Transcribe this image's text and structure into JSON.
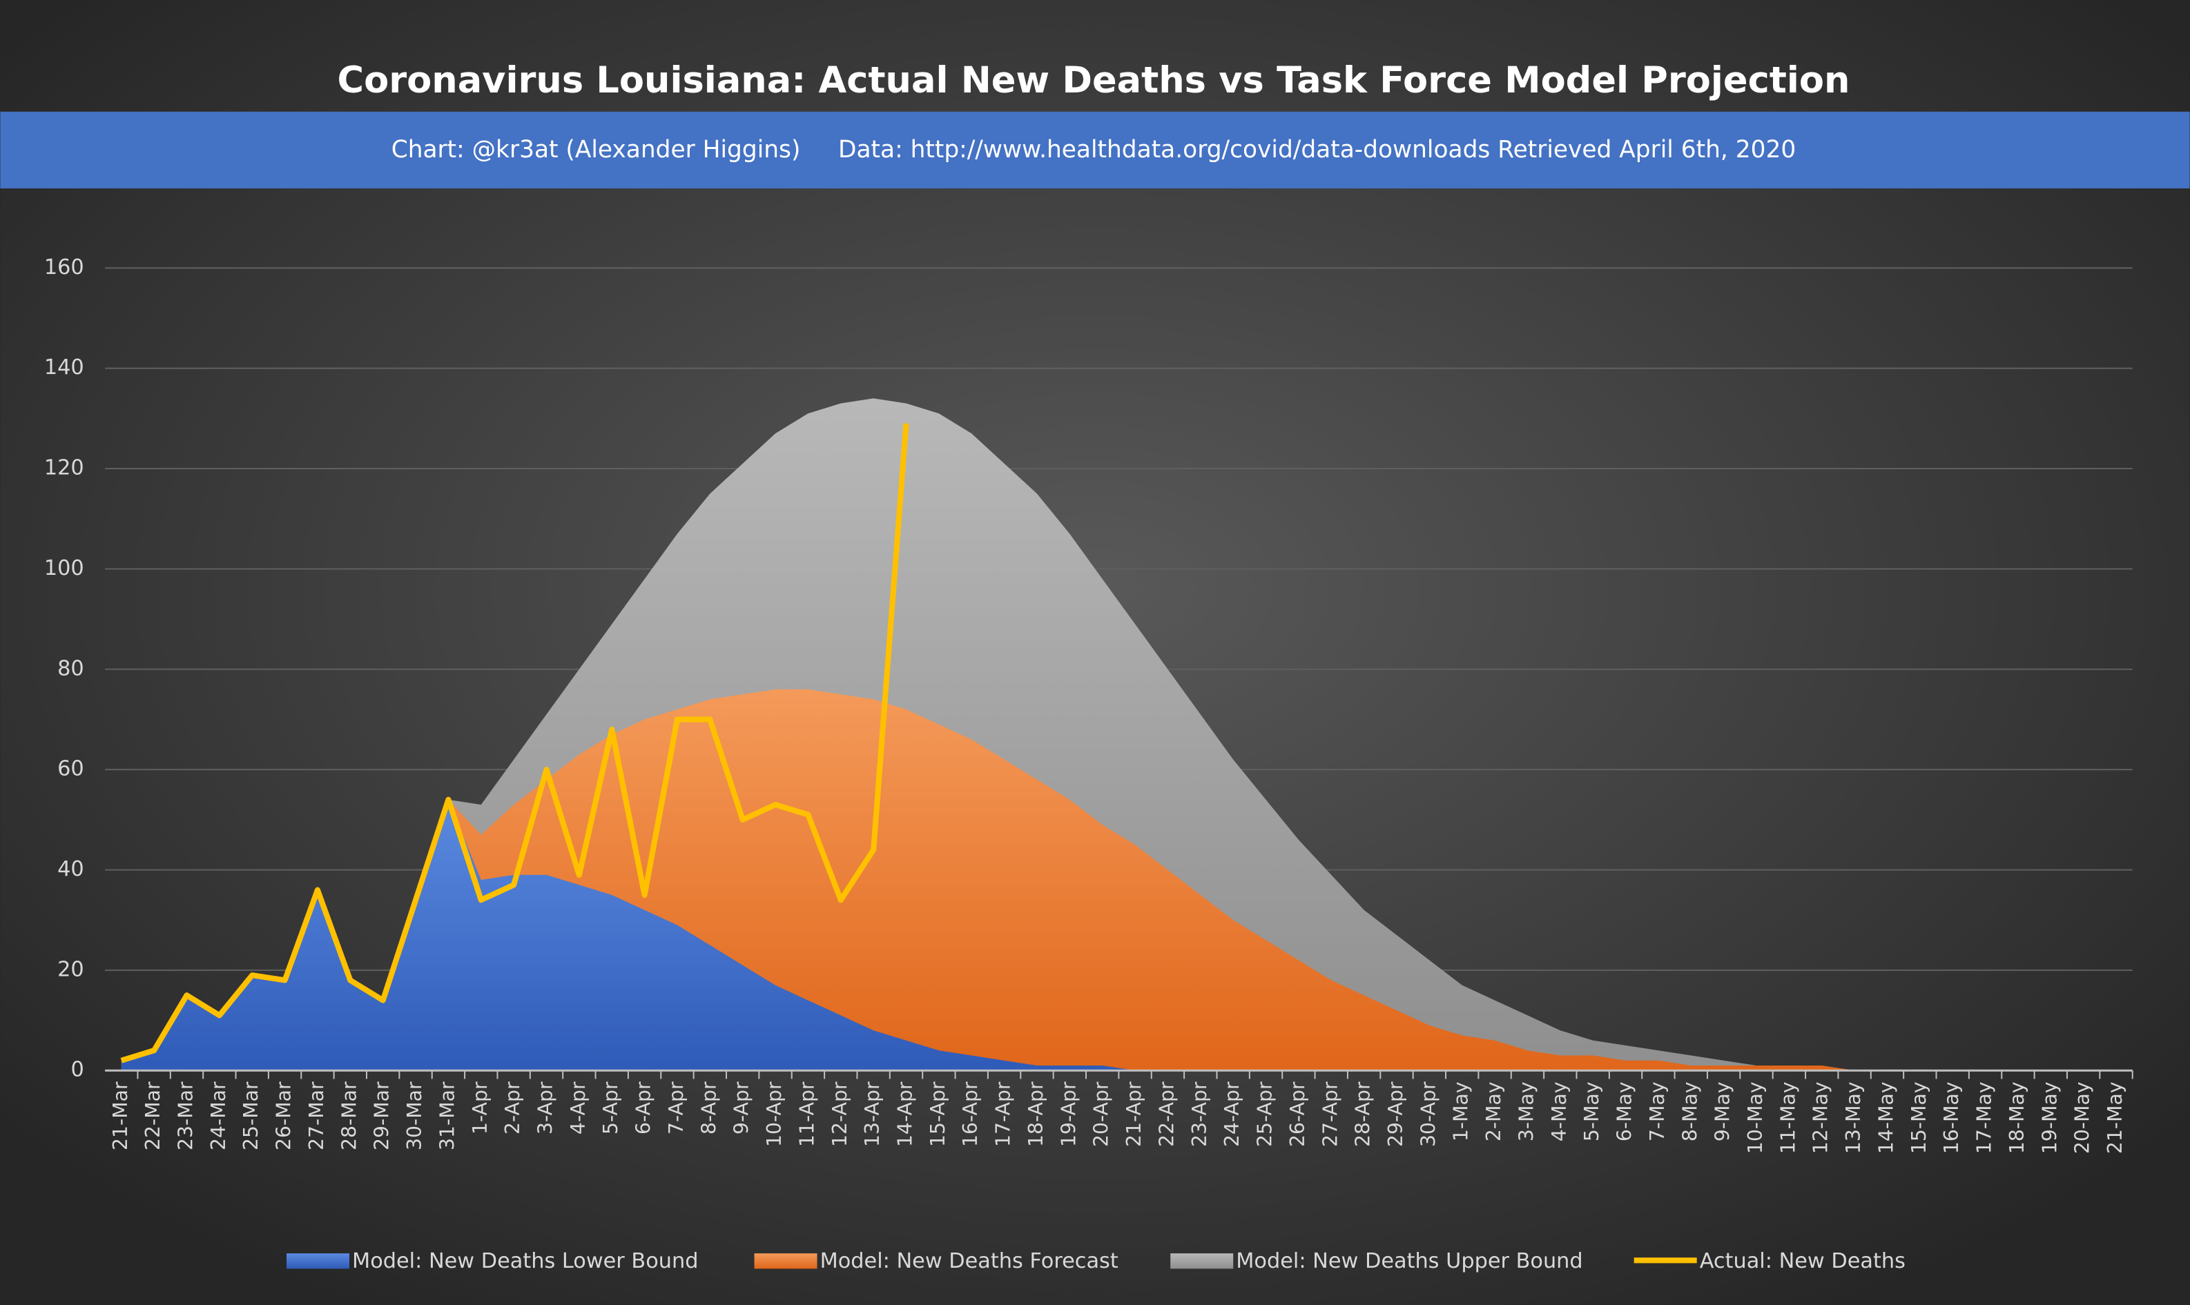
{
  "chart_data": {
    "type": "area",
    "title": "Coronavirus Louisiana: Actual New Deaths vs Task Force Model Projection",
    "subtitle": "Chart: @kr3at (Alexander Higgins)     Data: http://www.healthdata.org/covid/data-downloads Retrieved April 6th, 2020",
    "categories": [
      "21-Mar",
      "22-Mar",
      "23-Mar",
      "24-Mar",
      "25-Mar",
      "26-Mar",
      "27-Mar",
      "28-Mar",
      "29-Mar",
      "30-Mar",
      "31-Mar",
      "1-Apr",
      "2-Apr",
      "3-Apr",
      "4-Apr",
      "5-Apr",
      "6-Apr",
      "7-Apr",
      "8-Apr",
      "9-Apr",
      "10-Apr",
      "11-Apr",
      "12-Apr",
      "13-Apr",
      "14-Apr",
      "15-Apr",
      "16-Apr",
      "17-Apr",
      "18-Apr",
      "19-Apr",
      "20-Apr",
      "21-Apr",
      "22-Apr",
      "23-Apr",
      "24-Apr",
      "25-Apr",
      "26-Apr",
      "27-Apr",
      "28-Apr",
      "29-Apr",
      "30-Apr",
      "1-May",
      "2-May",
      "3-May",
      "4-May",
      "5-May",
      "6-May",
      "7-May",
      "8-May",
      "9-May",
      "10-May",
      "11-May",
      "12-May",
      "13-May",
      "14-May",
      "15-May",
      "16-May",
      "17-May",
      "18-May",
      "19-May",
      "20-May",
      "21-May"
    ],
    "series": [
      {
        "name": "Model: New Deaths Lower Bound",
        "color": "#4472c4",
        "kind": "area",
        "values": [
          2,
          4,
          15,
          11,
          19,
          18,
          36,
          18,
          14,
          34,
          54,
          38,
          39,
          39,
          37,
          35,
          32,
          29,
          25,
          21,
          17,
          14,
          11,
          8,
          6,
          4,
          3,
          2,
          1,
          1,
          1,
          0,
          0,
          0,
          0,
          0,
          0,
          0,
          0,
          0,
          0,
          0,
          0,
          0,
          0,
          0,
          0,
          0,
          0,
          0,
          0,
          0,
          0,
          0,
          0,
          0,
          0,
          0,
          0,
          0,
          0,
          0
        ]
      },
      {
        "name": "Model: New Deaths Forecast",
        "color": "#ed7d31",
        "kind": "area",
        "values": [
          2,
          4,
          15,
          11,
          19,
          18,
          36,
          18,
          14,
          34,
          54,
          47,
          53,
          58,
          63,
          67,
          70,
          72,
          74,
          75,
          76,
          76,
          75,
          74,
          72,
          69,
          66,
          62,
          58,
          54,
          49,
          45,
          40,
          35,
          30,
          26,
          22,
          18,
          15,
          12,
          9,
          7,
          6,
          4,
          3,
          3,
          2,
          2,
          1,
          1,
          1,
          1,
          1,
          0,
          0,
          0,
          0,
          0,
          0,
          0,
          0,
          0
        ]
      },
      {
        "name": "Model: New Deaths Upper Bound",
        "color": "#a5a5a5",
        "kind": "area",
        "values": [
          2,
          4,
          15,
          11,
          19,
          18,
          36,
          18,
          14,
          34,
          54,
          53,
          62,
          71,
          80,
          89,
          98,
          107,
          115,
          121,
          127,
          131,
          133,
          134,
          133,
          131,
          127,
          121,
          115,
          107,
          98,
          89,
          80,
          71,
          62,
          54,
          46,
          39,
          32,
          27,
          22,
          17,
          14,
          11,
          8,
          6,
          5,
          4,
          3,
          2,
          1,
          1,
          1,
          0,
          0,
          0,
          0,
          0,
          0,
          0,
          0,
          0
        ]
      },
      {
        "name": "Actual: New Deaths",
        "color": "#ffc000",
        "kind": "line",
        "values": [
          2,
          4,
          15,
          11,
          19,
          18,
          36,
          18,
          14,
          34,
          54,
          34,
          37,
          60,
          39,
          68,
          35,
          70,
          70,
          50,
          53,
          51,
          34,
          44,
          129,
          null,
          null,
          null,
          null,
          null,
          null,
          null,
          null,
          null,
          null,
          null,
          null,
          null,
          null,
          null,
          null,
          null,
          null,
          null,
          null,
          null,
          null,
          null,
          null,
          null,
          null,
          null,
          null,
          null,
          null,
          null,
          null,
          null,
          null,
          null,
          null,
          null
        ]
      }
    ],
    "ylim": [
      0,
      160
    ],
    "yticks": [
      0,
      20,
      40,
      60,
      80,
      100,
      120,
      140,
      160
    ],
    "grid": true,
    "legend": "bottom"
  }
}
